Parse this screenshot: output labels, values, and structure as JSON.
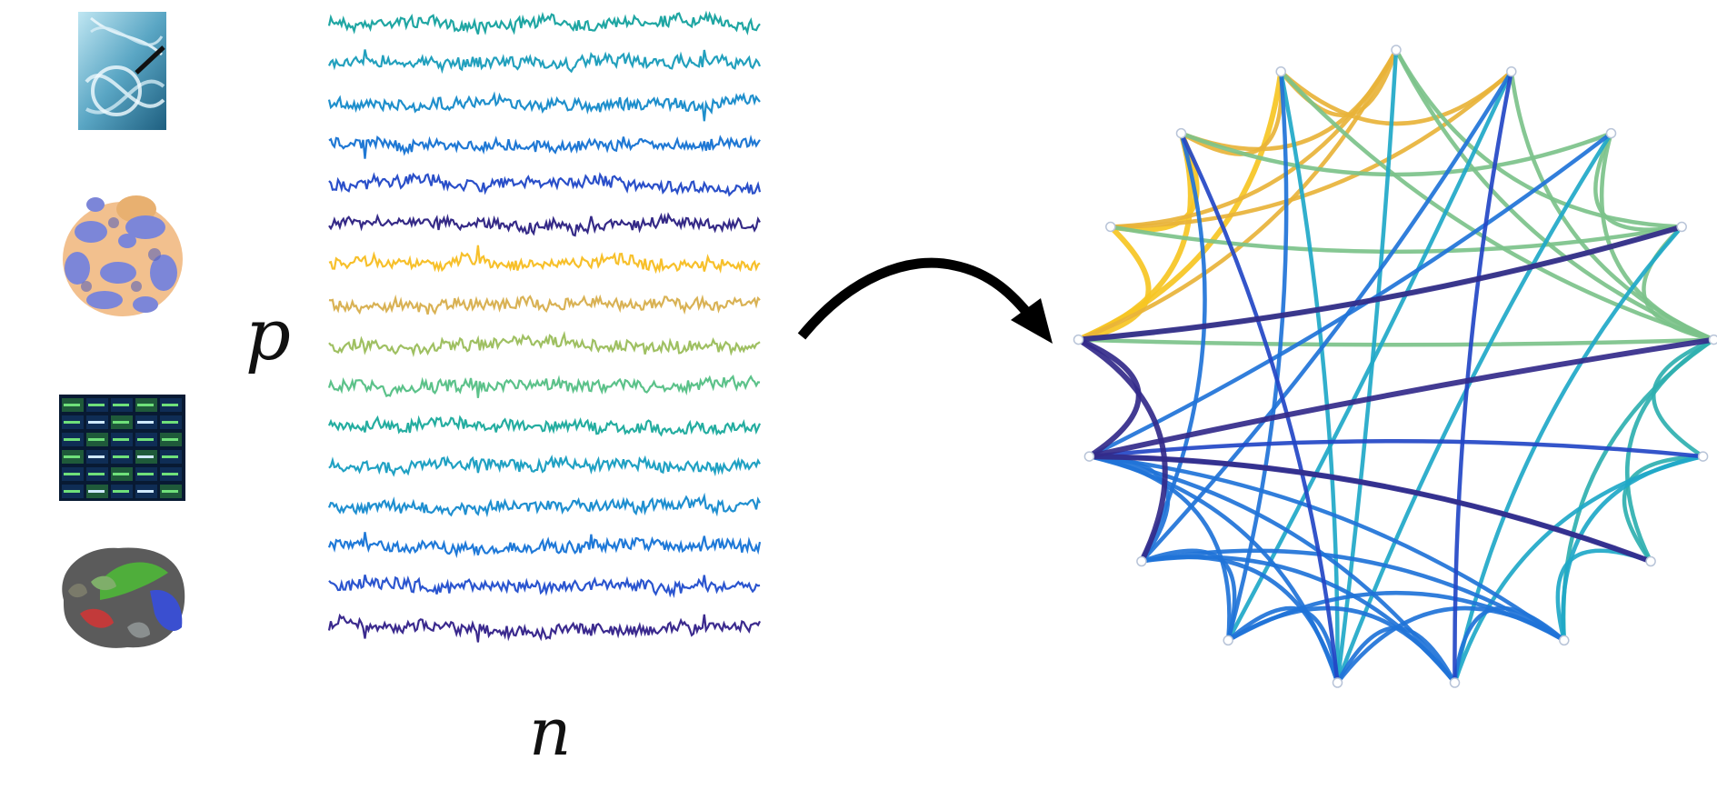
{
  "labels": {
    "p": "p",
    "n": "n"
  },
  "data_sources": [
    {
      "name": "dna-helix",
      "icon": "dna-icon"
    },
    {
      "name": "protein-structure",
      "icon": "protein-icon"
    },
    {
      "name": "stock-ticker-board",
      "icon": "stock-board-icon"
    },
    {
      "name": "brain-parcellation",
      "icon": "brain-icon"
    }
  ],
  "time_series": {
    "count": 16,
    "colors": [
      "#1fa6a3",
      "#22a0bd",
      "#1f8fcc",
      "#1f78d4",
      "#2a4fc9",
      "#352a87",
      "#f7c02b",
      "#d9b255",
      "#9fc062",
      "#5cc28a",
      "#24ada0",
      "#20a1c3",
      "#1f8fd0",
      "#1f79d8",
      "#2b55cf",
      "#3b2a8e"
    ]
  },
  "network": {
    "node_count": 17,
    "colors": {
      "yellow": "#f6c623",
      "gold": "#e8b33a",
      "green": "#7cc28a",
      "teal": "#2fb0b0",
      "cyan": "#1fa8c8",
      "blue": "#1f73d8",
      "darkblue": "#2346c6",
      "indigo": "#332a8a"
    }
  }
}
